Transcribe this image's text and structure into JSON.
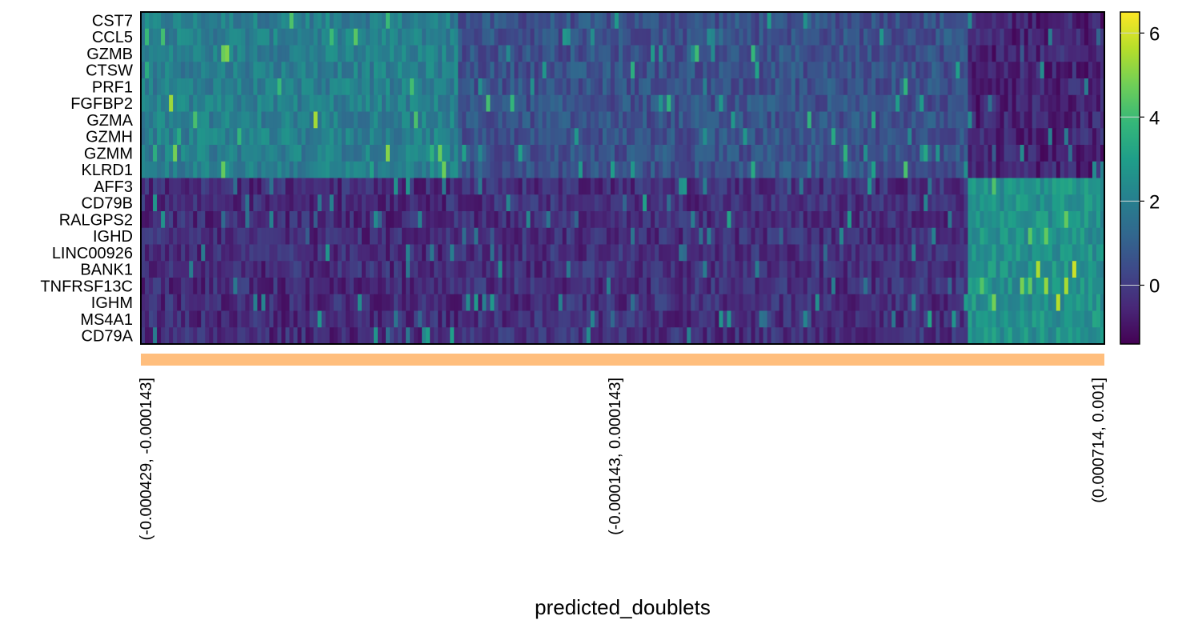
{
  "chart_data": {
    "type": "heatmap",
    "title": "",
    "xlabel": "predicted_doublets",
    "ylabel": "",
    "genes": [
      "CST7",
      "CCL5",
      "GZMB",
      "CTSW",
      "PRF1",
      "FGFBP2",
      "GZMA",
      "GZMH",
      "GZMM",
      "KLRD1",
      "AFF3",
      "CD79B",
      "RALGPS2",
      "IGHD",
      "LINC00926",
      "BANK1",
      "TNFRSF13C",
      "IGHM",
      "MS4A1",
      "CD79A"
    ],
    "gene_groups": [
      {
        "genes": [
          "CST7",
          "CCL5",
          "GZMB",
          "CTSW",
          "PRF1",
          "FGFBP2",
          "GZMA",
          "GZMH",
          "GZMM",
          "KLRD1"
        ],
        "segment_means": [
          2.0,
          0.6,
          -0.6
        ]
      },
      {
        "genes": [
          "AFF3",
          "CD79B",
          "RALGPS2",
          "IGHD",
          "LINC00926",
          "BANK1",
          "TNFRSF13C",
          "IGHM",
          "MS4A1",
          "CD79A"
        ],
        "segment_means": [
          -0.4,
          -0.3,
          2.6
        ]
      }
    ],
    "categories": [
      "(-0.000429, -0.000143]",
      "(-0.000143, 0.000143]",
      "(0.000714, 0.001]"
    ],
    "category_fraction": [
      0.33,
      0.53,
      0.14
    ],
    "category_color": "#ffbe7d",
    "colorbar": {
      "ticks": [
        0,
        2,
        4,
        6
      ],
      "vmin": -1.4,
      "vmax": 6.5,
      "colormap": "viridis"
    },
    "colormap_stops": [
      "#440154",
      "#482878",
      "#3e4989",
      "#31688e",
      "#26828e",
      "#1f9e89",
      "#35b779",
      "#6ece58",
      "#b5de2b",
      "#fde725"
    ]
  }
}
